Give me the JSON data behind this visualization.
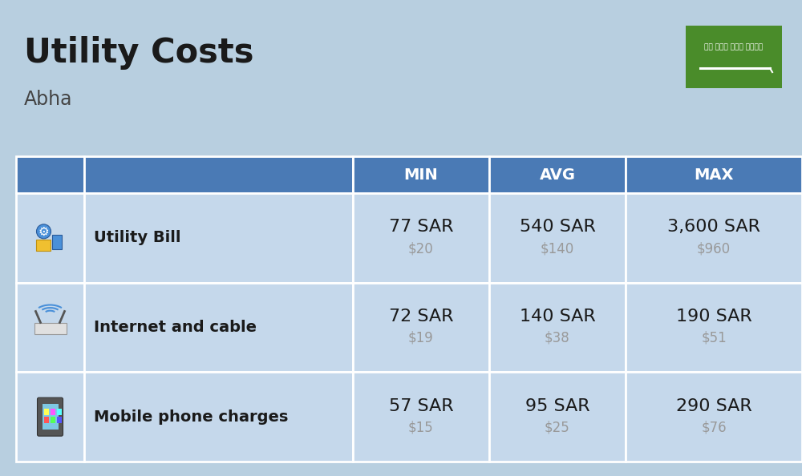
{
  "title": "Utility Costs",
  "subtitle": "Abha",
  "background_color": "#b8cfe0",
  "header_bg_color": "#4a7ab5",
  "header_text_color": "#ffffff",
  "row_bg_color": "#c5d8eb",
  "table_border_color": "#ffffff",
  "rows": [
    {
      "icon_label": "utility",
      "name": "Utility Bill",
      "min_sar": "77 SAR",
      "min_usd": "$20",
      "avg_sar": "540 SAR",
      "avg_usd": "$140",
      "max_sar": "3,600 SAR",
      "max_usd": "$960"
    },
    {
      "icon_label": "internet",
      "name": "Internet and cable",
      "min_sar": "72 SAR",
      "min_usd": "$19",
      "avg_sar": "140 SAR",
      "avg_usd": "$38",
      "max_sar": "190 SAR",
      "max_usd": "$51"
    },
    {
      "icon_label": "mobile",
      "name": "Mobile phone charges",
      "min_sar": "57 SAR",
      "min_usd": "$15",
      "avg_sar": "95 SAR",
      "avg_usd": "$25",
      "max_sar": "290 SAR",
      "max_usd": "$76"
    }
  ],
  "flag_color": "#4a8c2a",
  "title_fontsize": 30,
  "subtitle_fontsize": 17,
  "header_fontsize": 14,
  "name_fontsize": 14,
  "value_fontsize": 16,
  "usd_fontsize": 12,
  "usd_color": "#999999",
  "text_color": "#1a1a1a"
}
